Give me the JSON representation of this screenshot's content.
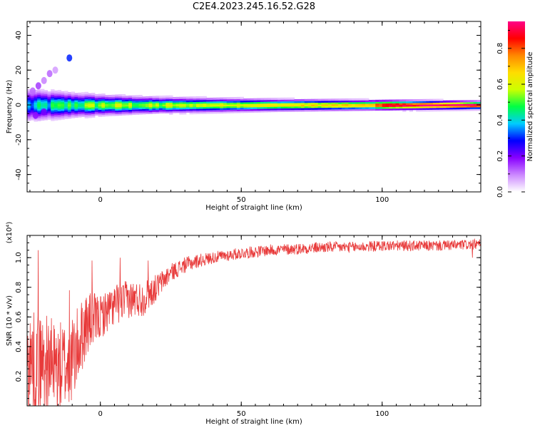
{
  "figure": {
    "title": "C2E4.2023.245.16.52.G28"
  },
  "chart_data": [
    {
      "type": "heatmap",
      "xlabel": "Height of straight line (km)",
      "ylabel": "Frequency (Hz)",
      "xlim": [
        -26,
        135
      ],
      "ylim": [
        -50,
        48
      ],
      "xticks": [
        0,
        50,
        100
      ],
      "yticks": [
        -40,
        -20,
        0,
        20,
        40
      ],
      "xtick_labels": [
        "0",
        "50",
        "100"
      ],
      "ytick_labels": [
        "-40",
        "-20",
        "0",
        "20",
        "40"
      ],
      "colorbar": {
        "label": "Normalized spectral amplitude",
        "range": [
          0,
          0.95
        ],
        "ticks": [
          0.0,
          0.2,
          0.4,
          0.6,
          0.8
        ],
        "tick_labels": [
          "0.0",
          "0.2",
          "0.4",
          "0.6",
          "0.8"
        ],
        "colors": [
          "#ffffff",
          "#cc88ff",
          "#8800ff",
          "#0000ff",
          "#00ccff",
          "#00ff44",
          "#ccff00",
          "#ffdd00",
          "#ff8800",
          "#ff0000",
          "#ff0088"
        ]
      },
      "band": {
        "center_hz": 0,
        "half_width_hz": [
          [
            -26,
            8
          ],
          [
            -10,
            6
          ],
          [
            0,
            5
          ],
          [
            20,
            4
          ],
          [
            60,
            3
          ],
          [
            100,
            2.5
          ],
          [
            135,
            2
          ]
        ],
        "peak_amplitude": [
          [
            -26,
            0.35
          ],
          [
            -15,
            0.45
          ],
          [
            0,
            0.55
          ],
          [
            20,
            0.55
          ],
          [
            60,
            0.65
          ],
          [
            95,
            0.7
          ],
          [
            100,
            0.92
          ],
          [
            135,
            0.95
          ]
        ]
      },
      "scatter_blobs": [
        {
          "x": -11,
          "y": 27,
          "v": 0.3
        },
        {
          "x": -18,
          "y": 18,
          "v": 0.12
        },
        {
          "x": -22,
          "y": 11,
          "v": 0.15
        },
        {
          "x": -24,
          "y": 8,
          "v": 0.12
        },
        {
          "x": -20,
          "y": 14,
          "v": 0.1
        },
        {
          "x": -16,
          "y": 20,
          "v": 0.08
        },
        {
          "x": -23,
          "y": -6,
          "v": 0.18
        },
        {
          "x": -20,
          "y": -4,
          "v": 0.2
        }
      ]
    },
    {
      "type": "line",
      "xlabel": "Height of straight line (km)",
      "ylabel": "SNR (10 * v/v)",
      "y_multiplier": "(x10⁴)",
      "xlim": [
        -26,
        135
      ],
      "ylim": [
        0,
        1.15
      ],
      "xticks": [
        0,
        50,
        100
      ],
      "yticks": [
        0.2,
        0.4,
        0.6,
        0.8,
        1.0
      ],
      "xtick_labels": [
        "0",
        "50",
        "100"
      ],
      "ytick_labels": [
        "0.2",
        "0.4",
        "0.6",
        "0.8",
        "1.0"
      ],
      "series": [
        {
          "color": "#e83a3a",
          "trend": [
            [
              -26,
              0.3
            ],
            [
              -20,
              0.3
            ],
            [
              -15,
              0.25
            ],
            [
              -10,
              0.3
            ],
            [
              -5,
              0.55
            ],
            [
              0,
              0.6
            ],
            [
              5,
              0.68
            ],
            [
              10,
              0.72
            ],
            [
              15,
              0.72
            ],
            [
              20,
              0.8
            ],
            [
              25,
              0.9
            ],
            [
              30,
              0.95
            ],
            [
              35,
              0.98
            ],
            [
              40,
              1.0
            ],
            [
              50,
              1.03
            ],
            [
              60,
              1.05
            ],
            [
              70,
              1.06
            ],
            [
              80,
              1.07
            ],
            [
              90,
              1.07
            ],
            [
              100,
              1.08
            ],
            [
              110,
              1.08
            ],
            [
              120,
              1.08
            ],
            [
              135,
              1.09
            ]
          ],
          "noise": [
            [
              -26,
              0.35
            ],
            [
              -10,
              0.3
            ],
            [
              0,
              0.15
            ],
            [
              15,
              0.12
            ],
            [
              25,
              0.06
            ],
            [
              40,
              0.04
            ],
            [
              135,
              0.035
            ]
          ],
          "spikes": [
            {
              "x": -22,
              "y": 1.05
            },
            {
              "x": -11,
              "y": 0.78
            },
            {
              "x": -3,
              "y": 0.98
            },
            {
              "x": 7,
              "y": 1.0
            },
            {
              "x": 17,
              "y": 0.98
            },
            {
              "x": 132,
              "y": 1.0
            }
          ]
        }
      ]
    }
  ]
}
